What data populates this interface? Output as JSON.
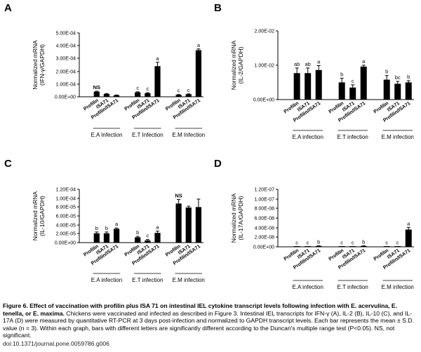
{
  "chart_data": [
    {
      "type": "bar",
      "panel": "A",
      "ylabel": "Normalized mRNA\n(IFN-γ/GAPDH)",
      "ylim": [
        0,
        0.0005
      ],
      "yticks": [
        "0.00E+00",
        "1.00E-04",
        "2.00E-04",
        "3.00E-04",
        "4.00E-04",
        "5.00E-04"
      ],
      "groups": [
        {
          "label": "E.A Infection",
          "bars": [
            {
              "category": "Profilin",
              "value": 4e-05,
              "err": 4e-06,
              "letter": "NS"
            },
            {
              "category": "ISA71",
              "value": 2.2e-05,
              "err": 3e-06,
              "letter": ""
            },
            {
              "category": "Profilin/ISA71",
              "value": 1.2e-05,
              "err": 2e-06,
              "letter": ""
            }
          ]
        },
        {
          "label": "E.T Infection",
          "bars": [
            {
              "category": "Profilin",
              "value": 3.5e-05,
              "err": 4e-06,
              "letter": "c"
            },
            {
              "category": "ISA71",
              "value": 2.8e-05,
              "err": 4e-06,
              "letter": "c"
            },
            {
              "category": "Profilin/ISA71",
              "value": 0.00024,
              "err": 3e-05,
              "letter": "a"
            }
          ]
        },
        {
          "label": "E.M Infection",
          "bars": [
            {
              "category": "Profilin",
              "value": 1.5e-05,
              "err": 3e-06,
              "letter": "c"
            },
            {
              "category": "ISA71",
              "value": 2e-05,
              "err": 3e-06,
              "letter": "c"
            },
            {
              "category": "Profilin/ISA71",
              "value": 0.000365,
              "err": 1e-05,
              "letter": "a"
            }
          ]
        }
      ]
    },
    {
      "type": "bar",
      "panel": "B",
      "ylabel": "Normalized mRNA\n(IL-2/GAPDH)",
      "ylim": [
        0,
        0.02
      ],
      "yticks": [
        "0.00E+00",
        "1.00E-02",
        "2.00E-02"
      ],
      "groups": [
        {
          "label": "E.A infection",
          "bars": [
            {
              "category": "Profilin",
              "value": 0.0077,
              "err": 0.0015,
              "letter": "ab"
            },
            {
              "category": "ISA71",
              "value": 0.0077,
              "err": 0.0015,
              "letter": "ab"
            },
            {
              "category": "Profilin/ISA71",
              "value": 0.0086,
              "err": 0.0013,
              "letter": "a"
            }
          ]
        },
        {
          "label": "E.T infection",
          "bars": [
            {
              "category": "Profilin",
              "value": 0.005,
              "err": 0.0012,
              "letter": "b"
            },
            {
              "category": "ISA71",
              "value": 0.0035,
              "err": 0.0008,
              "letter": "c"
            },
            {
              "category": "Profilin/ISA71",
              "value": 0.0096,
              "err": 0.0004,
              "letter": "a"
            }
          ]
        },
        {
          "label": "E.M infection",
          "bars": [
            {
              "category": "Profilin",
              "value": 0.0058,
              "err": 0.0012,
              "letter": "b"
            },
            {
              "category": "ISA71",
              "value": 0.0046,
              "err": 0.0007,
              "letter": "bc"
            },
            {
              "category": "Profilin/ISA71",
              "value": 0.005,
              "err": 0.0005,
              "letter": "b"
            }
          ]
        }
      ]
    },
    {
      "type": "bar",
      "panel": "C",
      "ylabel": "Normalized mRNA\n(IL-10/GAPDH)",
      "ylim": [
        0,
        0.00012
      ],
      "yticks": [
        "0.00E+00",
        "2.00E-05",
        "4.00E-05",
        "6.00E-05",
        "8.00E-05",
        "1.00E-04",
        "1.20E-04"
      ],
      "groups": [
        {
          "label": "E.A infection",
          "bars": [
            {
              "category": "Profilin",
              "value": 2.1e-05,
              "err": 3e-06,
              "letter": "b"
            },
            {
              "category": "ISA71",
              "value": 2.1e-05,
              "err": 3e-06,
              "letter": "b"
            },
            {
              "category": "Profilin/ISA71",
              "value": 3.1e-05,
              "err": 2e-06,
              "letter": "a"
            }
          ]
        },
        {
          "label": "E.T infection",
          "bars": [
            {
              "category": "Profilin",
              "value": 1.2e-05,
              "err": 2e-06,
              "letter": "b"
            },
            {
              "category": "ISA71",
              "value": 5e-06,
              "err": 2e-06,
              "letter": "c"
            },
            {
              "category": "Profilin/ISA71",
              "value": 2.2e-05,
              "err": 4e-06,
              "letter": "a"
            }
          ]
        },
        {
          "label": "E.M infection",
          "bars": [
            {
              "category": "Profilin",
              "value": 8.8e-05,
              "err": 9e-06,
              "letter": "NS"
            },
            {
              "category": "ISA71",
              "value": 7.9e-05,
              "err": 3e-06,
              "letter": ""
            },
            {
              "category": "Profilin/ISA71",
              "value": 8e-05,
              "err": 1.8e-05,
              "letter": ""
            }
          ]
        }
      ]
    },
    {
      "type": "bar",
      "panel": "D",
      "ylabel": "Normalized mRNA\n(IL-17A/GAPDH)",
      "ylim": [
        0,
        1.2e-07
      ],
      "yticks": [
        "0.00E+00",
        "2.00E-08",
        "4.00E-08",
        "6.00E-08",
        "8.00E-08",
        "1.00E-07",
        "1.20E-07"
      ],
      "groups": [
        {
          "label": "E.A infection",
          "bars": [
            {
              "category": "Profilin",
              "value": 5e-10,
              "err": 2e-10,
              "letter": "c"
            },
            {
              "category": "ISA71",
              "value": 5e-10,
              "err": 2e-10,
              "letter": "c"
            },
            {
              "category": "Profilin/ISA71",
              "value": 1.7e-09,
              "err": 4e-10,
              "letter": "b"
            }
          ]
        },
        {
          "label": "E.T infection",
          "bars": [
            {
              "category": "Profilin",
              "value": 5e-10,
              "err": 2e-10,
              "letter": "c"
            },
            {
              "category": "ISA71",
              "value": 5e-10,
              "err": 2e-10,
              "letter": "c"
            },
            {
              "category": "Profilin/ISA71",
              "value": 1.7e-09,
              "err": 4e-10,
              "letter": "b"
            }
          ]
        },
        {
          "label": "E.M infection",
          "bars": [
            {
              "category": "Profilin",
              "value": 5e-10,
              "err": 2e-10,
              "letter": "c"
            },
            {
              "category": "ISA71",
              "value": 5e-10,
              "err": 2e-10,
              "letter": "c"
            },
            {
              "category": "Profilin/ISA71",
              "value": 3.6e-08,
              "err": 4.5e-09,
              "letter": "a"
            }
          ]
        }
      ]
    }
  ],
  "caption": {
    "title": "Figure 6. Effect of vaccination with profilin plus ISA 71 on intestinal IEL cytokine transcript levels following infection with E. acervulina, E. tenella, or E. maxima.",
    "body": "Chickens were vaccinated and infected as described in Figure 3. Intestinal IEL transcripts for IFN-γ (A), IL-2 (B), IL-10 (C), and IL-17A (D) were measured by quantitative RT-PCR at 3 days post-infection and normalized to GAPDH transcript levels. Each bar represents the mean ± S.D. value (n = 3). Within each graph, bars with different letters are significantly different according to the Duncan's multiple range test (P<0.05). NS, not significant.",
    "doi": "doi:10.1371/journal.pone.0059786.g006"
  }
}
